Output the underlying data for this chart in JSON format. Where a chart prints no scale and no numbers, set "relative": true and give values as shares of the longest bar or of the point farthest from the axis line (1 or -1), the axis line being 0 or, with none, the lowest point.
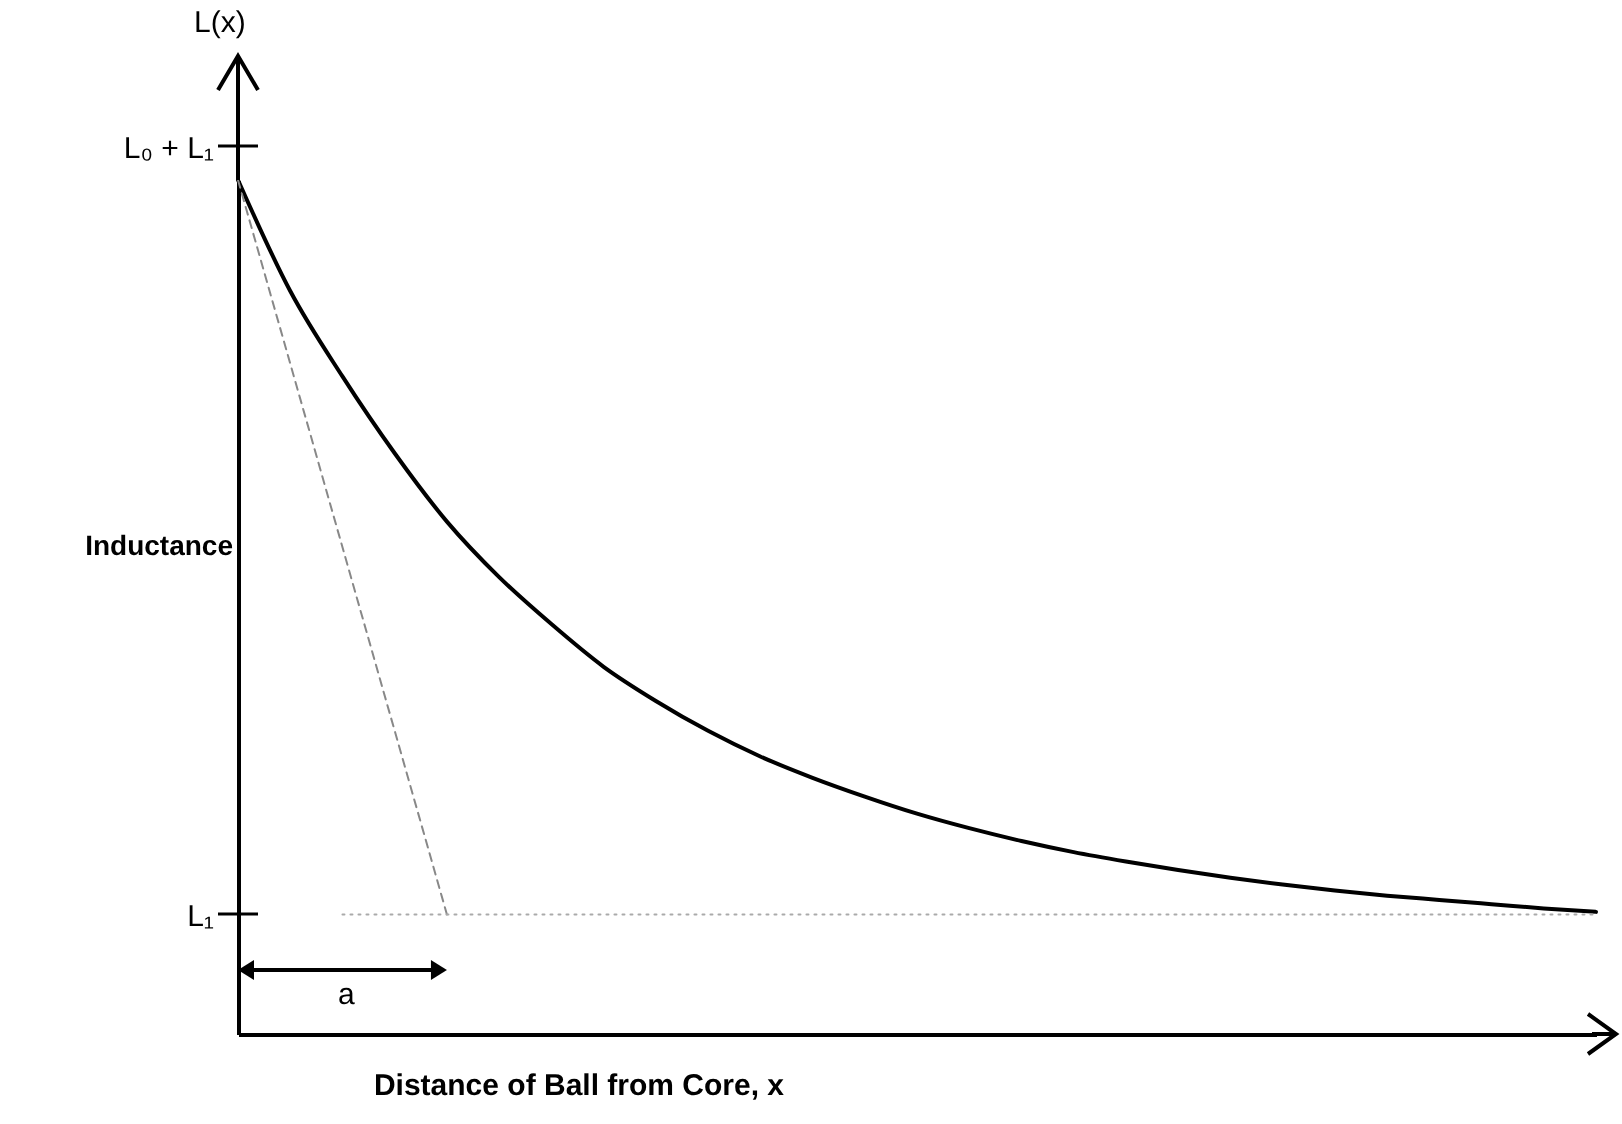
{
  "chart_data": {
    "type": "line",
    "relative": true,
    "xlabel": "Distance of Ball from Core, x",
    "ylabel": "Inductance",
    "annotations": [
      "L(x)",
      "a",
      "L₀ + L₁",
      "L₁"
    ],
    "categories": [
      null,
      null,
      null,
      null,
      null,
      null,
      null,
      null,
      null,
      null,
      null,
      null,
      null,
      null,
      null,
      null,
      null,
      null,
      null,
      null,
      null,
      null,
      null,
      null,
      null,
      null,
      null
    ],
    "series": [
      {
        "color": "#000000",
        "line_style": "solid",
        "values": [
          1.0,
          0.87,
          0.77,
          0.68,
          0.6,
          0.535,
          0.48,
          0.43,
          0.39,
          0.355,
          0.325,
          0.3,
          0.278,
          0.258,
          0.241,
          0.226,
          0.213,
          0.202,
          0.192,
          0.183,
          0.175,
          0.168,
          0.162,
          0.157,
          0.152,
          0.147,
          0.143
        ]
      },
      {
        "color": "#888888",
        "line_style": "dashed",
        "values": [
          1.0,
          null,
          null,
          null,
          0.14,
          null,
          null,
          null,
          null,
          null,
          null,
          null,
          null,
          null,
          null,
          null,
          null,
          null,
          null,
          null,
          null,
          null,
          null,
          null,
          null,
          null,
          null
        ]
      },
      {
        "color": "#aaaaaa",
        "line_style": "dotted",
        "values": [
          null,
          null,
          0.14,
          0.14,
          0.14,
          0.14,
          0.14,
          0.14,
          0.14,
          0.14,
          0.14,
          0.14,
          0.14,
          0.14,
          0.14,
          0.14,
          0.14,
          0.14,
          0.14,
          0.14,
          0.14,
          0.14,
          0.14,
          0.14,
          0.14,
          0.14,
          0.14
        ]
      }
    ]
  }
}
